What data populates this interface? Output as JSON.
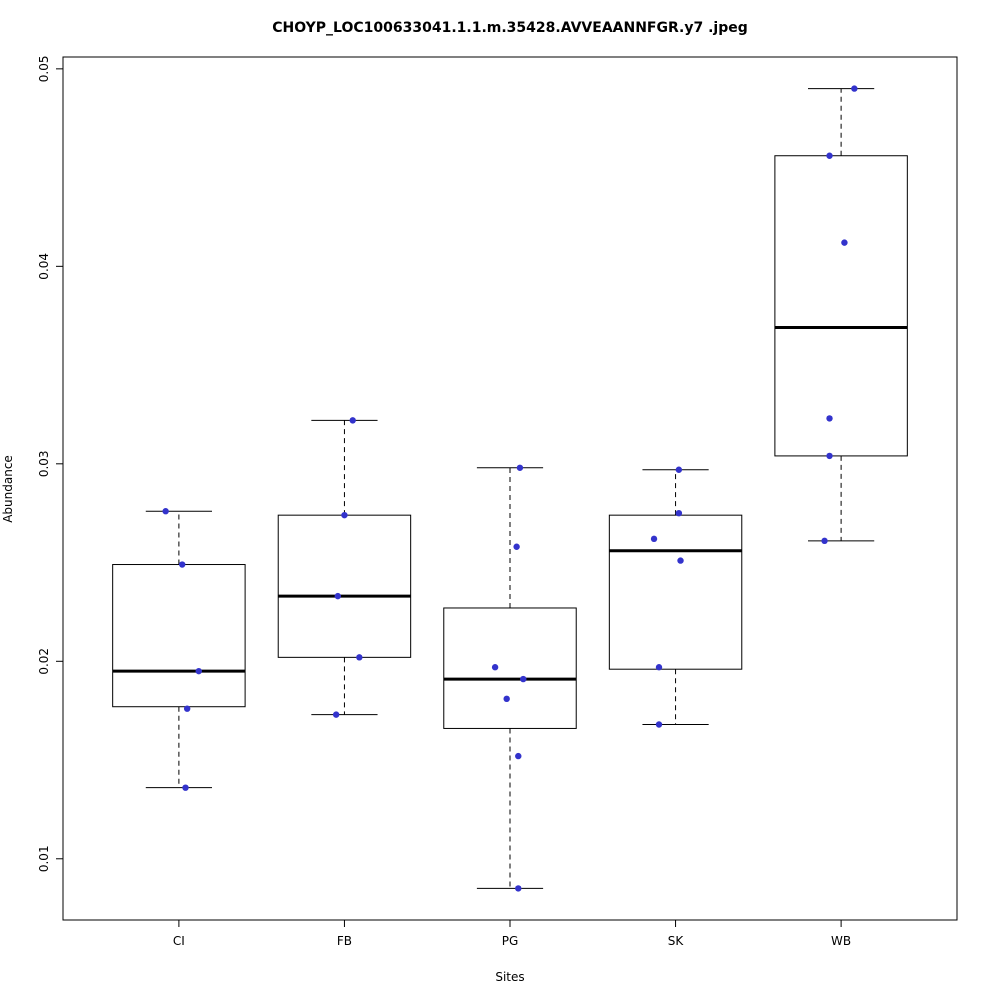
{
  "title": "CHOYP_LOC100633041.1.1.m.35428.AVVEAANNFGR.y7 .jpeg",
  "chart_data": {
    "type": "boxplot",
    "title": "CHOYP_LOC100633041.1.1.m.35428.AVVEAANNFGR.y7 .jpeg",
    "xlabel": "Sites",
    "ylabel": "Abundance",
    "categories": [
      "CI",
      "FB",
      "PG",
      "SK",
      "WB"
    ],
    "ylim": [
      0.0069,
      0.0506
    ],
    "xlim": [
      0.3,
      5.7
    ],
    "yticks": [
      0.01,
      0.02,
      0.03,
      0.04,
      0.05
    ],
    "ytick_labels": [
      "0.01",
      "0.02",
      "0.03",
      "0.04",
      "0.05"
    ],
    "grid": false,
    "legend": "none",
    "point_color": "#3333cc",
    "box_color": "#000000",
    "boxes": [
      {
        "category": "CI",
        "whisker_low": 0.0136,
        "q1": 0.0177,
        "median": 0.0195,
        "q3": 0.0249,
        "whisker_high": 0.0276
      },
      {
        "category": "FB",
        "whisker_low": 0.0173,
        "q1": 0.0202,
        "median": 0.0233,
        "q3": 0.0274,
        "whisker_high": 0.0322
      },
      {
        "category": "PG",
        "whisker_low": 0.0085,
        "q1": 0.0166,
        "median": 0.0191,
        "q3": 0.0227,
        "whisker_high": 0.0298
      },
      {
        "category": "SK",
        "whisker_low": 0.0168,
        "q1": 0.0196,
        "median": 0.0256,
        "q3": 0.0274,
        "whisker_high": 0.0297
      },
      {
        "category": "WB",
        "whisker_low": 0.0261,
        "q1": 0.0304,
        "median": 0.0369,
        "q3": 0.0456,
        "whisker_high": 0.049
      }
    ],
    "points": [
      {
        "category": "CI",
        "values": [
          {
            "v": 0.0276,
            "dx": -0.08
          },
          {
            "v": 0.0249,
            "dx": 0.02
          },
          {
            "v": 0.0195,
            "dx": 0.12
          },
          {
            "v": 0.0176,
            "dx": 0.05
          },
          {
            "v": 0.0136,
            "dx": 0.04
          }
        ]
      },
      {
        "category": "FB",
        "values": [
          {
            "v": 0.0322,
            "dx": 0.05
          },
          {
            "v": 0.0274,
            "dx": 0.0
          },
          {
            "v": 0.0233,
            "dx": -0.04
          },
          {
            "v": 0.0202,
            "dx": 0.09
          },
          {
            "v": 0.0173,
            "dx": -0.05
          }
        ]
      },
      {
        "category": "PG",
        "values": [
          {
            "v": 0.0298,
            "dx": 0.06
          },
          {
            "v": 0.0258,
            "dx": 0.04
          },
          {
            "v": 0.0197,
            "dx": -0.09
          },
          {
            "v": 0.0191,
            "dx": 0.08
          },
          {
            "v": 0.0181,
            "dx": -0.02
          },
          {
            "v": 0.0152,
            "dx": 0.05
          },
          {
            "v": 0.0085,
            "dx": 0.05
          }
        ]
      },
      {
        "category": "SK",
        "values": [
          {
            "v": 0.0297,
            "dx": 0.02
          },
          {
            "v": 0.0275,
            "dx": 0.02
          },
          {
            "v": 0.0262,
            "dx": -0.13
          },
          {
            "v": 0.0251,
            "dx": 0.03
          },
          {
            "v": 0.0197,
            "dx": -0.1
          },
          {
            "v": 0.0168,
            "dx": -0.1
          }
        ]
      },
      {
        "category": "WB",
        "values": [
          {
            "v": 0.049,
            "dx": 0.08
          },
          {
            "v": 0.0456,
            "dx": -0.07
          },
          {
            "v": 0.0412,
            "dx": 0.02
          },
          {
            "v": 0.0323,
            "dx": -0.07
          },
          {
            "v": 0.0304,
            "dx": -0.07
          },
          {
            "v": 0.0261,
            "dx": -0.1
          }
        ]
      }
    ]
  }
}
